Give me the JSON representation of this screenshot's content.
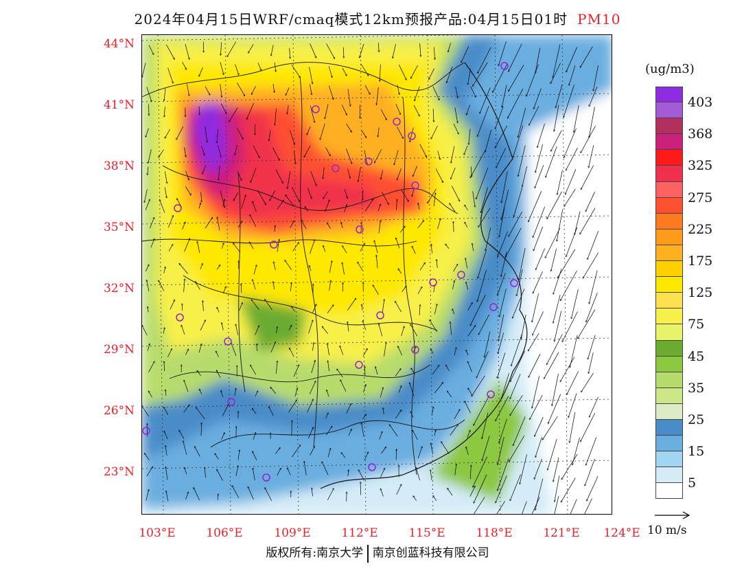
{
  "title": {
    "main": "2024年04月15日WRF/cmaq模式12km预报产品:04月15日01时",
    "variable": "PM10"
  },
  "map": {
    "latitude_labels": [
      "44°N",
      "41°N",
      "38°N",
      "35°N",
      "32°N",
      "29°N",
      "26°N",
      "23°N"
    ],
    "longitude_labels": [
      "103°E",
      "106°E",
      "109°E",
      "112°E",
      "115°E",
      "118°E",
      "121°E",
      "124°E"
    ],
    "concentration_field": "PM10 concentration shaded over eastern China; maximum (>403) in the Ordos/Loess region near 106-107°E 39-40°N, high (225-325) along 35-37°N, 75-175 across central China, low (<25) over the southern provinces and the sea"
  },
  "colorbar": {
    "units": "(ug/m3)",
    "levels": [
      {
        "label": "403",
        "color": "#8f2be0"
      },
      {
        "label": "",
        "color": "#a35ad6"
      },
      {
        "label": "368",
        "color": "#b03060"
      },
      {
        "label": "",
        "color": "#cc1f7a"
      },
      {
        "label": "325",
        "color": "#ff1a1a"
      },
      {
        "label": "",
        "color": "#f0304c"
      },
      {
        "label": "275",
        "color": "#ff6060"
      },
      {
        "label": "",
        "color": "#ff5030"
      },
      {
        "label": "225",
        "color": "#ff7a20"
      },
      {
        "label": "",
        "color": "#ff9a1a"
      },
      {
        "label": "175",
        "color": "#ffb020"
      },
      {
        "label": "",
        "color": "#ffd000"
      },
      {
        "label": "125",
        "color": "#ffe800"
      },
      {
        "label": "",
        "color": "#ffe050"
      },
      {
        "label": "75",
        "color": "#f7f04a"
      },
      {
        "label": "",
        "color": "#e8f46a"
      },
      {
        "label": "45",
        "color": "#6aab30"
      },
      {
        "label": "",
        "color": "#8cc840"
      },
      {
        "label": "35",
        "color": "#b8dc6c"
      },
      {
        "label": "",
        "color": "#cde68a"
      },
      {
        "label": "25",
        "color": "#dcecc4"
      },
      {
        "label": "",
        "color": "#4a8cc8"
      },
      {
        "label": "15",
        "color": "#6aaee0"
      },
      {
        "label": "",
        "color": "#a0d6f2"
      },
      {
        "label": "5",
        "color": "#d4ecf8"
      },
      {
        "label": "",
        "color": "#ffffff"
      }
    ]
  },
  "reference_vector": {
    "label": "10 m/s"
  },
  "copyright": {
    "left": "版权所有:南京大学",
    "right": "南京创蓝科技有限公司"
  }
}
